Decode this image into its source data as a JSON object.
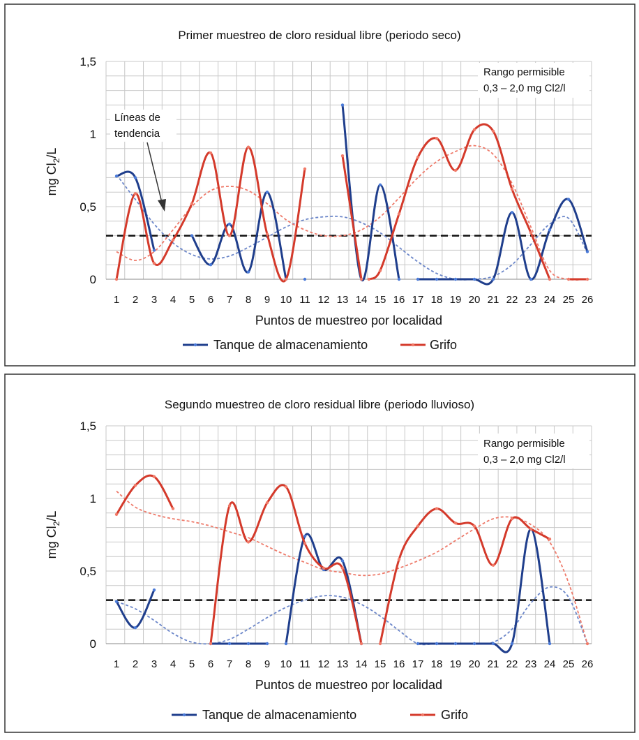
{
  "chart_data": [
    {
      "type": "line",
      "title": "Primer muestreo de cloro residual libre (periodo seco)",
      "xlabel": "Puntos de muestreo por localidad",
      "ylabel_main": "mg Cl",
      "ylabel_sub": "2",
      "ylabel_tail": "/L",
      "categories": [
        "1",
        "2",
        "3",
        "4",
        "5",
        "6",
        "7",
        "8",
        "9",
        "10",
        "11",
        "12",
        "13",
        "14",
        "15",
        "16",
        "17",
        "18",
        "19",
        "20",
        "21",
        "22",
        "23",
        "24",
        "25",
        "26"
      ],
      "y_ticks": [
        "0",
        "0,5",
        "1",
        "1,5"
      ],
      "ylim": [
        0,
        1.5
      ],
      "grid": true,
      "threshold": 0.3,
      "annotation_range_1": "Rango permisible",
      "annotation_range_2": "0,3 – 2,0 mg Cl2/l",
      "annotation_trend_1": "Líneas de",
      "annotation_trend_2": "tendencia",
      "legend_position": "bottom",
      "series": [
        {
          "name": "Tanque de almacenamiento",
          "color": "#1f3e8c",
          "segments": [
            {
              "x": [
                1,
                2,
                3
              ],
              "y": [
                0.71,
                0.7,
                0.2
              ]
            },
            {
              "x": [
                5,
                6,
                7,
                8,
                9,
                10
              ],
              "y": [
                0.3,
                0.1,
                0.38,
                0.05,
                0.6,
                0.0
              ]
            },
            {
              "x": [
                11
              ],
              "y": [
                0.0
              ]
            },
            {
              "x": [
                13,
                14,
                15,
                16
              ],
              "y": [
                1.2,
                0.0,
                0.65,
                0.0
              ]
            },
            {
              "x": [
                17,
                18,
                19,
                20,
                21,
                22,
                23,
                24,
                25,
                26
              ],
              "y": [
                0.0,
                0.0,
                0.0,
                0.0,
                0.0,
                0.46,
                0.0,
                0.34,
                0.55,
                0.19
              ]
            }
          ],
          "trend": {
            "x": [
              1,
              2,
              3,
              4,
              5,
              6,
              7,
              8,
              9,
              10,
              11,
              12,
              13,
              14,
              15,
              16,
              17,
              18,
              19,
              20,
              21,
              22,
              23,
              24,
              25,
              26
            ],
            "y": [
              0.72,
              0.55,
              0.38,
              0.25,
              0.17,
              0.14,
              0.16,
              0.22,
              0.29,
              0.36,
              0.41,
              0.43,
              0.43,
              0.39,
              0.32,
              0.22,
              0.12,
              0.04,
              0.0,
              0.0,
              0.02,
              0.1,
              0.24,
              0.38,
              0.42,
              0.18
            ]
          }
        },
        {
          "name": "Grifo",
          "color": "#d43a2b",
          "segments": [
            {
              "x": [
                1,
                2,
                3,
                4,
                5,
                6,
                7,
                8,
                9,
                10,
                11
              ],
              "y": [
                0.0,
                0.59,
                0.11,
                0.27,
                0.52,
                0.87,
                0.3,
                0.91,
                0.31,
                0.0,
                0.76
              ]
            },
            {
              "x": [
                13,
                14
              ],
              "y": [
                0.85,
                0.0
              ]
            },
            {
              "x": [
                14.4,
                15,
                16,
                17,
                18,
                19,
                20,
                21,
                22,
                23,
                24
              ],
              "y": [
                0.0,
                0.06,
                0.45,
                0.84,
                0.97,
                0.75,
                1.03,
                1.02,
                0.62,
                0.32,
                0.0
              ]
            },
            {
              "x": [
                25,
                26
              ],
              "y": [
                0.0,
                0.0
              ]
            }
          ],
          "trend": {
            "x": [
              1,
              2,
              3,
              4,
              5,
              6,
              7,
              8,
              9,
              10,
              11,
              12,
              13,
              14,
              15,
              16,
              17,
              18,
              19,
              20,
              21,
              22,
              23,
              24,
              25,
              26
            ],
            "y": [
              0.19,
              0.13,
              0.19,
              0.34,
              0.5,
              0.61,
              0.64,
              0.61,
              0.52,
              0.41,
              0.34,
              0.3,
              0.3,
              0.34,
              0.43,
              0.56,
              0.7,
              0.81,
              0.88,
              0.92,
              0.86,
              0.66,
              0.36,
              0.06,
              0.0,
              0.0
            ]
          }
        }
      ]
    },
    {
      "type": "line",
      "title": "Segundo muestreo de cloro residual libre (periodo lluvioso)",
      "xlabel": "Puntos de muestreo por localidad",
      "ylabel_main": "mg Cl",
      "ylabel_sub": "2",
      "ylabel_tail": "/L",
      "categories": [
        "1",
        "2",
        "3",
        "4",
        "5",
        "6",
        "7",
        "8",
        "9",
        "10",
        "11",
        "12",
        "13",
        "14",
        "15",
        "16",
        "17",
        "18",
        "19",
        "20",
        "21",
        "22",
        "23",
        "24",
        "25",
        "26"
      ],
      "y_ticks": [
        "0",
        "0,5",
        "1",
        "1,5"
      ],
      "ylim": [
        0,
        1.5
      ],
      "grid": true,
      "threshold": 0.3,
      "annotation_range_1": "Rango permisible",
      "annotation_range_2": "0,3 – 2,0 mg Cl2/l",
      "legend_position": "bottom",
      "series": [
        {
          "name": "Tanque de almacenamiento",
          "color": "#1f3e8c",
          "segments": [
            {
              "x": [
                1,
                2,
                3
              ],
              "y": [
                0.29,
                0.11,
                0.37
              ]
            },
            {
              "x": [
                6,
                7,
                8,
                9
              ],
              "y": [
                0.0,
                0.0,
                0.0,
                0.0
              ]
            },
            {
              "x": [
                10,
                11,
                12,
                13,
                14
              ],
              "y": [
                0.0,
                0.74,
                0.51,
                0.57,
                0.0
              ]
            },
            {
              "x": [
                17,
                18,
                19,
                20,
                21,
                22,
                23,
                24
              ],
              "y": [
                0.0,
                0.0,
                0.0,
                0.0,
                0.0,
                0.0,
                0.79,
                0.0
              ]
            }
          ],
          "trend": {
            "x": [
              1,
              2,
              3,
              4,
              5,
              6,
              7,
              8,
              9,
              10,
              11,
              12,
              13,
              14,
              15,
              16,
              17,
              18,
              19,
              20,
              21,
              22,
              23,
              24,
              25,
              26
            ],
            "y": [
              0.29,
              0.24,
              0.16,
              0.07,
              0.01,
              0.0,
              0.03,
              0.1,
              0.18,
              0.25,
              0.3,
              0.33,
              0.32,
              0.27,
              0.19,
              0.09,
              0.0,
              0.0,
              0.0,
              0.0,
              0.01,
              0.1,
              0.28,
              0.39,
              0.32,
              0.0
            ]
          }
        },
        {
          "name": "Grifo",
          "color": "#d43a2b",
          "segments": [
            {
              "x": [
                1,
                2,
                3,
                4
              ],
              "y": [
                0.89,
                1.09,
                1.15,
                0.93
              ]
            },
            {
              "x": [
                6,
                7,
                8,
                9,
                10,
                11,
                12,
                13,
                14
              ],
              "y": [
                0.0,
                0.95,
                0.7,
                0.97,
                1.08,
                0.69,
                0.52,
                0.52,
                0.0
              ]
            },
            {
              "x": [
                15,
                16,
                17,
                18,
                19,
                20,
                21,
                22,
                23,
                24
              ],
              "y": [
                0.0,
                0.58,
                0.81,
                0.93,
                0.83,
                0.81,
                0.54,
                0.86,
                0.79,
                0.72
              ]
            },
            {
              "x": [
                26
              ],
              "y": [
                0.0
              ]
            }
          ],
          "trend": {
            "x": [
              1,
              2,
              3,
              4,
              5,
              6,
              7,
              8,
              9,
              10,
              11,
              12,
              13,
              14,
              15,
              16,
              17,
              18,
              19,
              20,
              21,
              22,
              23,
              24,
              25,
              26
            ],
            "y": [
              1.05,
              0.94,
              0.89,
              0.86,
              0.84,
              0.81,
              0.77,
              0.73,
              0.67,
              0.61,
              0.56,
              0.51,
              0.49,
              0.47,
              0.48,
              0.52,
              0.57,
              0.63,
              0.71,
              0.79,
              0.86,
              0.87,
              0.82,
              0.7,
              0.42,
              0.0
            ]
          }
        }
      ]
    }
  ]
}
